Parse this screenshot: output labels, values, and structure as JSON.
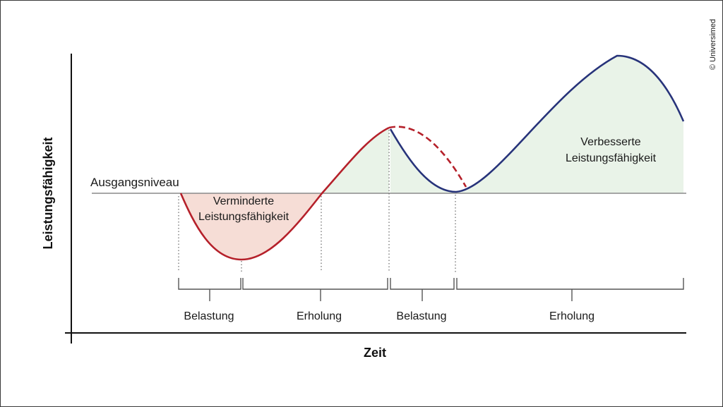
{
  "axes": {
    "y_label": "Leistungsfähigkeit",
    "x_label": "Zeit"
  },
  "baseline_label": "Ausgangsniveau",
  "regions": {
    "reduced": [
      "Verminderte",
      "Leistungsfähigkeit"
    ],
    "improved": [
      "Verbesserte",
      "Leistungsfähigkeit"
    ]
  },
  "phases": [
    "Belastung",
    "Erholung",
    "Belastung",
    "Erholung"
  ],
  "copyright": "© Universimed",
  "colors": {
    "red_curve": "#b5202a",
    "blue_curve": "#27337a",
    "reduced_fill": "#f6ddd6",
    "improved_fill": "#e9f3e8",
    "baseline": "#8a8a8a",
    "axis": "#111111"
  }
}
